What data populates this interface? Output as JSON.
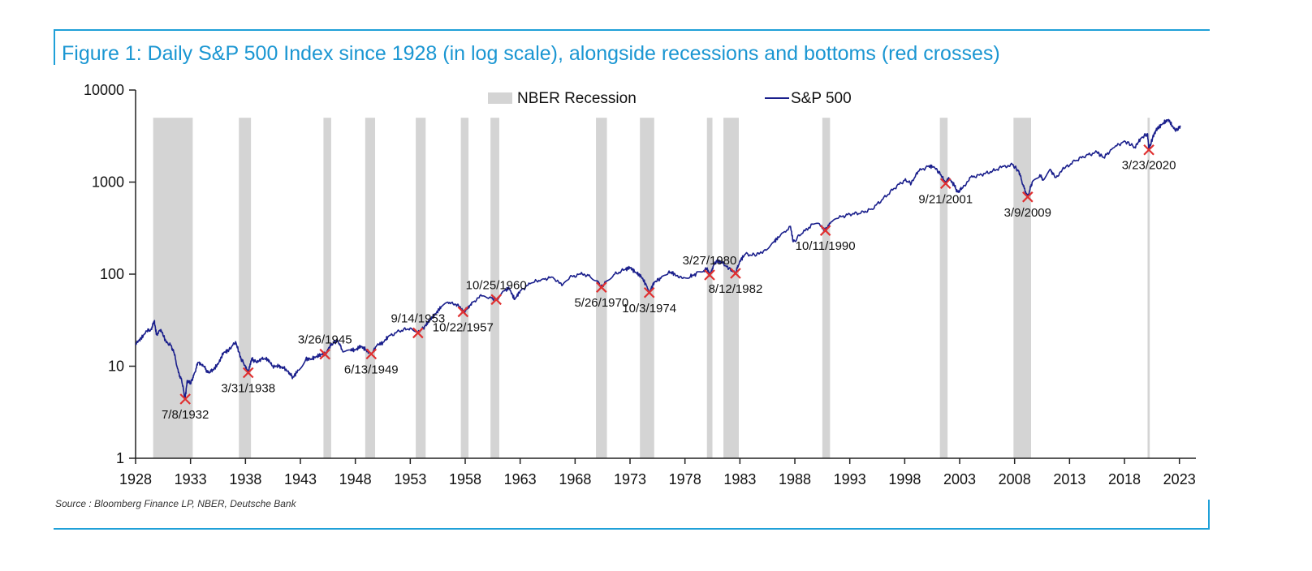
{
  "chart_data": {
    "type": "line",
    "title": "Figure 1: Daily S&P 500 Index since 1928 (in log scale), alongside recessions and bottoms (red crosses)",
    "source": "Source : Bloomberg Finance LP, NBER, Deutsche Bank",
    "yscale": "log",
    "ylim": [
      1,
      10000
    ],
    "xlim": [
      1928,
      2024.5
    ],
    "x_ticks": [
      1928,
      1933,
      1938,
      1943,
      1948,
      1953,
      1958,
      1963,
      1968,
      1973,
      1978,
      1983,
      1988,
      1993,
      1998,
      2003,
      2008,
      2013,
      2018,
      2023
    ],
    "y_ticks": [
      1,
      10,
      100,
      1000,
      10000
    ],
    "legend": {
      "recession_label": "NBER Recession",
      "series_label": "S&P 500",
      "position": "top-center"
    },
    "colors": {
      "line": "#1a1f8c",
      "recession": "#d4d4d4",
      "cross": "#e03030",
      "frame": "#1fa0d8",
      "title": "#1a96d2"
    },
    "recessions": [
      [
        1929.6,
        1933.2
      ],
      [
        1937.4,
        1938.5
      ],
      [
        1945.1,
        1945.8
      ],
      [
        1948.9,
        1949.8
      ],
      [
        1953.5,
        1954.4
      ],
      [
        1957.6,
        1958.3
      ],
      [
        1960.3,
        1961.1
      ],
      [
        1969.9,
        1970.9
      ],
      [
        1973.9,
        1975.2
      ],
      [
        1980.0,
        1980.5
      ],
      [
        1981.5,
        1982.9
      ],
      [
        1990.5,
        1991.2
      ],
      [
        2001.2,
        2001.9
      ],
      [
        2007.9,
        2009.5
      ],
      [
        2020.1,
        2020.3
      ]
    ],
    "series": [
      {
        "name": "S&P 500",
        "points": [
          [
            1928.0,
            17.6
          ],
          [
            1928.5,
            20.0
          ],
          [
            1929.0,
            24.0
          ],
          [
            1929.4,
            25.0
          ],
          [
            1929.7,
            31.0
          ],
          [
            1929.9,
            22.0
          ],
          [
            1930.3,
            25.0
          ],
          [
            1930.8,
            18.0
          ],
          [
            1931.2,
            17.0
          ],
          [
            1931.5,
            14.0
          ],
          [
            1931.9,
            8.5
          ],
          [
            1932.2,
            7.0
          ],
          [
            1932.5,
            4.4
          ],
          [
            1932.7,
            7.0
          ],
          [
            1933.0,
            6.5
          ],
          [
            1933.3,
            8.0
          ],
          [
            1933.7,
            11.0
          ],
          [
            1934.2,
            10.0
          ],
          [
            1934.6,
            8.5
          ],
          [
            1935.0,
            9.0
          ],
          [
            1935.5,
            10.5
          ],
          [
            1936.0,
            14.0
          ],
          [
            1936.5,
            15.0
          ],
          [
            1937.1,
            18.5
          ],
          [
            1937.6,
            12.0
          ],
          [
            1938.0,
            10.0
          ],
          [
            1938.25,
            8.5
          ],
          [
            1938.6,
            12.0
          ],
          [
            1939.0,
            11.0
          ],
          [
            1939.5,
            12.0
          ],
          [
            1940.0,
            12.0
          ],
          [
            1940.5,
            10.0
          ],
          [
            1941.0,
            10.0
          ],
          [
            1941.5,
            9.5
          ],
          [
            1942.0,
            8.5
          ],
          [
            1942.3,
            7.5
          ],
          [
            1942.8,
            9.0
          ],
          [
            1943.5,
            12.0
          ],
          [
            1944.0,
            12.0
          ],
          [
            1944.5,
            12.8
          ],
          [
            1945.0,
            13.5
          ],
          [
            1945.25,
            13.5
          ],
          [
            1945.6,
            16.0
          ],
          [
            1946.0,
            18.0
          ],
          [
            1946.4,
            19.0
          ],
          [
            1946.8,
            15.0
          ],
          [
            1947.5,
            15.0
          ],
          [
            1948.0,
            15.0
          ],
          [
            1948.5,
            16.5
          ],
          [
            1949.0,
            15.0
          ],
          [
            1949.45,
            13.6
          ],
          [
            1950.0,
            17.0
          ],
          [
            1950.5,
            18.0
          ],
          [
            1951.0,
            21.0
          ],
          [
            1952.0,
            24.0
          ],
          [
            1953.0,
            26.0
          ],
          [
            1953.7,
            23.0
          ],
          [
            1954.3,
            27.0
          ],
          [
            1954.8,
            32.0
          ],
          [
            1955.3,
            37.0
          ],
          [
            1955.8,
            44.0
          ],
          [
            1956.5,
            48.0
          ],
          [
            1957.3,
            47.0
          ],
          [
            1957.8,
            39.0
          ],
          [
            1958.2,
            42.0
          ],
          [
            1958.7,
            50.0
          ],
          [
            1959.5,
            58.0
          ],
          [
            1960.2,
            56.0
          ],
          [
            1960.8,
            53.0
          ],
          [
            1961.5,
            66.0
          ],
          [
            1962.0,
            70.0
          ],
          [
            1962.5,
            53.0
          ],
          [
            1963.0,
            66.0
          ],
          [
            1964.0,
            80.0
          ],
          [
            1965.0,
            88.0
          ],
          [
            1966.0,
            92.0
          ],
          [
            1966.8,
            75.0
          ],
          [
            1967.5,
            92.0
          ],
          [
            1968.5,
            100.0
          ],
          [
            1969.3,
            98.0
          ],
          [
            1970.0,
            85.0
          ],
          [
            1970.4,
            72.0
          ],
          [
            1970.8,
            82.0
          ],
          [
            1971.5,
            98.0
          ],
          [
            1972.5,
            112.0
          ],
          [
            1973.0,
            118.0
          ],
          [
            1973.5,
            105.0
          ],
          [
            1974.0,
            95.0
          ],
          [
            1974.5,
            75.0
          ],
          [
            1974.75,
            63.0
          ],
          [
            1975.2,
            82.0
          ],
          [
            1975.8,
            90.0
          ],
          [
            1976.5,
            105.0
          ],
          [
            1977.0,
            102.0
          ],
          [
            1977.8,
            90.0
          ],
          [
            1978.5,
            95.0
          ],
          [
            1979.0,
            100.0
          ],
          [
            1979.7,
            108.0
          ],
          [
            1980.0,
            115.0
          ],
          [
            1980.24,
            98.0
          ],
          [
            1980.6,
            125.0
          ],
          [
            1980.9,
            140.0
          ],
          [
            1981.4,
            132.0
          ],
          [
            1982.0,
            115.0
          ],
          [
            1982.6,
            102.0
          ],
          [
            1983.0,
            140.0
          ],
          [
            1983.5,
            165.0
          ],
          [
            1984.5,
            160.0
          ],
          [
            1985.3,
            185.0
          ],
          [
            1986.0,
            220.0
          ],
          [
            1986.5,
            250.0
          ],
          [
            1987.6,
            330.0
          ],
          [
            1987.85,
            225.0
          ],
          [
            1988.5,
            265.0
          ],
          [
            1989.6,
            350.0
          ],
          [
            1990.3,
            340.0
          ],
          [
            1990.78,
            298.0
          ],
          [
            1991.3,
            370.0
          ],
          [
            1992.0,
            410.0
          ],
          [
            1993.0,
            450.0
          ],
          [
            1994.0,
            460.0
          ],
          [
            1995.0,
            510.0
          ],
          [
            1996.0,
            650.0
          ],
          [
            1997.0,
            850.0
          ],
          [
            1998.0,
            1050.0
          ],
          [
            1998.6,
            970.0
          ],
          [
            1999.2,
            1300.0
          ],
          [
            2000.2,
            1500.0
          ],
          [
            2000.7,
            1450.0
          ],
          [
            2001.3,
            1200.0
          ],
          [
            2001.72,
            965.0
          ],
          [
            2002.0,
            1120.0
          ],
          [
            2002.5,
            920.0
          ],
          [
            2002.8,
            780.0
          ],
          [
            2003.2,
            850.0
          ],
          [
            2004.0,
            1130.0
          ],
          [
            2005.0,
            1200.0
          ],
          [
            2006.0,
            1320.0
          ],
          [
            2007.0,
            1480.0
          ],
          [
            2007.8,
            1550.0
          ],
          [
            2008.4,
            1300.0
          ],
          [
            2008.8,
            900.0
          ],
          [
            2009.19,
            690.0
          ],
          [
            2009.6,
            1000.0
          ],
          [
            2010.3,
            1200.0
          ],
          [
            2010.6,
            1050.0
          ],
          [
            2011.3,
            1350.0
          ],
          [
            2011.7,
            1120.0
          ],
          [
            2012.5,
            1400.0
          ],
          [
            2013.5,
            1700.0
          ],
          [
            2014.5,
            1950.0
          ],
          [
            2015.5,
            2100.0
          ],
          [
            2016.1,
            1850.0
          ],
          [
            2017.0,
            2350.0
          ],
          [
            2018.0,
            2800.0
          ],
          [
            2018.95,
            2400.0
          ],
          [
            2019.5,
            3000.0
          ],
          [
            2020.1,
            3350.0
          ],
          [
            2020.22,
            2240.0
          ],
          [
            2020.7,
            3400.0
          ],
          [
            2021.0,
            3800.0
          ],
          [
            2021.5,
            4350.0
          ],
          [
            2022.0,
            4780.0
          ],
          [
            2022.5,
            3800.0
          ],
          [
            2022.8,
            3650.0
          ],
          [
            2023.1,
            4100.0
          ]
        ]
      }
    ],
    "bottoms": [
      {
        "label": "7/8/1932",
        "x": 1932.52,
        "y": 4.4,
        "pos": "below"
      },
      {
        "label": "3/31/1938",
        "x": 1938.25,
        "y": 8.5,
        "pos": "below"
      },
      {
        "label": "3/26/1945",
        "x": 1945.23,
        "y": 13.5,
        "pos": "above"
      },
      {
        "label": "6/13/1949",
        "x": 1949.45,
        "y": 13.6,
        "pos": "below"
      },
      {
        "label": "9/14/1953",
        "x": 1953.7,
        "y": 23.0,
        "pos": "above"
      },
      {
        "label": "10/22/1957",
        "x": 1957.8,
        "y": 39.0,
        "pos": "below"
      },
      {
        "label": "10/25/1960",
        "x": 1960.82,
        "y": 53.0,
        "pos": "above"
      },
      {
        "label": "5/26/1970",
        "x": 1970.4,
        "y": 72.0,
        "pos": "below"
      },
      {
        "label": "10/3/1974",
        "x": 1974.75,
        "y": 63.0,
        "pos": "below"
      },
      {
        "label": "3/27/1980",
        "x": 1980.24,
        "y": 98.0,
        "pos": "above"
      },
      {
        "label": "8/12/1982",
        "x": 1982.6,
        "y": 102.0,
        "pos": "below"
      },
      {
        "label": "10/11/1990",
        "x": 1990.78,
        "y": 298.0,
        "pos": "below"
      },
      {
        "label": "9/21/2001",
        "x": 2001.72,
        "y": 965.0,
        "pos": "below"
      },
      {
        "label": "3/9/2009",
        "x": 2009.19,
        "y": 690.0,
        "pos": "below"
      },
      {
        "label": "3/23/2020",
        "x": 2020.22,
        "y": 2240.0,
        "pos": "below"
      }
    ]
  }
}
